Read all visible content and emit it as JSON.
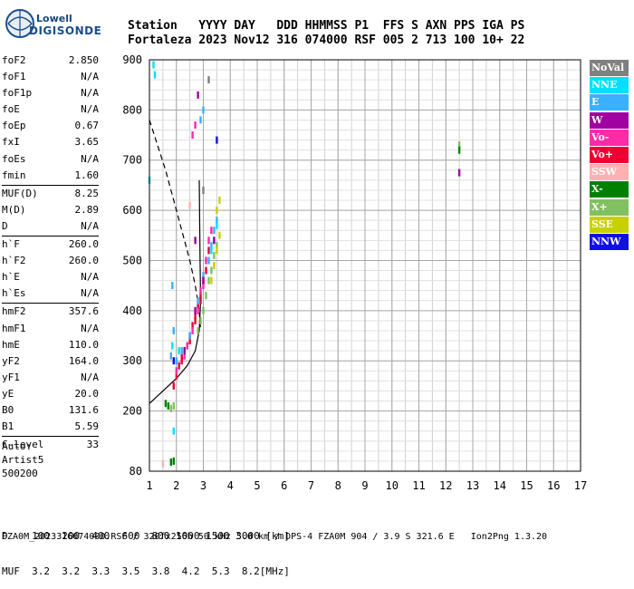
{
  "logo": {
    "line1": "Lowell",
    "line2": "DIGISONDE"
  },
  "header": {
    "labels": [
      "Station",
      "YYYY",
      "DAY",
      "DDD",
      "HHMMSS",
      "P1",
      "FFS",
      "S",
      "AXN",
      "PPS",
      "IGA",
      "PS"
    ],
    "values": [
      "Fortaleza",
      "2023",
      "Nov12",
      "316",
      "074000",
      "RSF",
      "005",
      "2",
      "713",
      "100",
      "10+",
      "22"
    ]
  },
  "params": [
    [
      [
        "foF2",
        "2.850"
      ],
      [
        "foF1",
        "N/A"
      ],
      [
        "foF1p",
        "N/A"
      ],
      [
        "foE",
        "N/A"
      ],
      [
        "foEp",
        "0.67"
      ],
      [
        "fxI",
        "3.65"
      ],
      [
        "foEs",
        "N/A"
      ],
      [
        "fmin",
        "1.60"
      ]
    ],
    [
      [
        "MUF(D)",
        "8.25"
      ],
      [
        "M(D)",
        "2.89"
      ],
      [
        "D",
        "N/A"
      ]
    ],
    [
      [
        "h`F",
        "260.0"
      ],
      [
        "h`F2",
        "260.0"
      ],
      [
        "h`E",
        "N/A"
      ],
      [
        "h`Es",
        "N/A"
      ]
    ],
    [
      [
        "hmF2",
        "357.6"
      ],
      [
        "hmF1",
        "N/A"
      ],
      [
        "hmE",
        "110.0"
      ],
      [
        "yF2",
        "164.0"
      ],
      [
        "yF1",
        "N/A"
      ],
      [
        "yE",
        "20.0"
      ],
      [
        "B0",
        "131.6"
      ],
      [
        "B1",
        "5.59"
      ]
    ],
    [
      [
        "C-level",
        "33"
      ]
    ]
  ],
  "auto": [
    "Auto:",
    "Artist5",
    "500200"
  ],
  "legend": [
    {
      "label": "NoVal",
      "color": "#808080"
    },
    {
      "label": "NNE",
      "color": "#00e0ff"
    },
    {
      "label": "E",
      "color": "#3ab0ff"
    },
    {
      "label": "W",
      "color": "#a000a0"
    },
    {
      "label": "Vo-",
      "color": "#ff2aa8"
    },
    {
      "label": "Vo+",
      "color": "#ee0033"
    },
    {
      "label": "SSW",
      "color": "#ffb0b0"
    },
    {
      "label": "X-",
      "color": "#008000"
    },
    {
      "label": "X+",
      "color": "#80c060"
    },
    {
      "label": "SSE",
      "color": "#c8d000"
    },
    {
      "label": "NNW",
      "color": "#1010e0"
    }
  ],
  "freq_table": {
    "d_label": "D",
    "d_values": [
      "100",
      "200",
      "400",
      "600",
      "800",
      "1000",
      "1500",
      "3000",
      "[km]"
    ],
    "muf_label": "MUF",
    "muf_values": [
      "3.2",
      "3.2",
      "3.3",
      "3.5",
      "3.8",
      "4.2",
      "5.3",
      "8.2",
      "[MHz]"
    ]
  },
  "footer": "FZA0M_2023316074000.RSF / 320fx256h 50 kHz 5.0 km / DPS-4 FZA0M 904 / 3.9 S 321.6 E   Ion2Png 1.3.20",
  "chart_data": {
    "type": "scatter",
    "xlim": [
      1,
      17
    ],
    "ylim": [
      80,
      900
    ],
    "x_ticks": [
      1,
      2,
      3,
      4,
      5,
      6,
      7,
      8,
      9,
      10,
      11,
      12,
      13,
      14,
      15,
      16,
      17
    ],
    "y_ticks": [
      80,
      200,
      300,
      400,
      500,
      600,
      700,
      800,
      900
    ],
    "grid": true,
    "clusters": [
      {
        "color": "#ee0033",
        "points": [
          [
            1.9,
            250
          ],
          [
            2.0,
            270
          ],
          [
            2.1,
            290
          ],
          [
            2.2,
            300
          ],
          [
            2.3,
            320
          ],
          [
            2.4,
            330
          ],
          [
            2.5,
            350
          ],
          [
            2.6,
            370
          ],
          [
            2.7,
            390
          ],
          [
            2.8,
            410
          ],
          [
            2.9,
            430
          ],
          [
            3.0,
            460
          ],
          [
            3.1,
            480
          ],
          [
            2.2,
            310
          ],
          [
            2.5,
            340
          ],
          [
            2.7,
            380
          ],
          [
            2.9,
            420
          ],
          [
            3.2,
            520
          ]
        ]
      },
      {
        "color": "#ff2aa8",
        "points": [
          [
            2.0,
            280
          ],
          [
            2.3,
            310
          ],
          [
            2.6,
            360
          ],
          [
            2.8,
            400
          ],
          [
            3.0,
            450
          ],
          [
            3.1,
            500
          ],
          [
            3.2,
            540
          ],
          [
            3.3,
            560
          ],
          [
            2.4,
            330
          ],
          [
            2.9,
            440
          ],
          [
            2.6,
            750
          ],
          [
            2.7,
            770
          ]
        ]
      },
      {
        "color": "#3ab0ff",
        "points": [
          [
            1.8,
            310
          ],
          [
            2.0,
            300
          ],
          [
            2.2,
            320
          ],
          [
            2.5,
            350
          ],
          [
            2.8,
            420
          ],
          [
            3.0,
            470
          ],
          [
            3.2,
            500
          ],
          [
            3.3,
            530
          ],
          [
            3.4,
            560
          ],
          [
            3.5,
            580
          ],
          [
            2.9,
            780
          ],
          [
            3.0,
            800
          ],
          [
            1.9,
            360
          ],
          [
            1.85,
            450
          ]
        ]
      },
      {
        "color": "#00e0ff",
        "points": [
          [
            1.85,
            330
          ],
          [
            2.1,
            320
          ],
          [
            3.3,
            520
          ],
          [
            3.4,
            540
          ],
          [
            3.5,
            570
          ],
          [
            1.15,
            890
          ],
          [
            1.2,
            870
          ],
          [
            1.9,
            160
          ],
          [
            1.0,
            660
          ]
        ]
      },
      {
        "color": "#a000a0",
        "points": [
          [
            2.3,
            320
          ],
          [
            2.7,
            400
          ],
          [
            3.0,
            460
          ],
          [
            3.4,
            540
          ],
          [
            2.7,
            540
          ],
          [
            12.5,
            675
          ],
          [
            2.8,
            830
          ]
        ]
      },
      {
        "color": "#80c060",
        "points": [
          [
            2.8,
            360
          ],
          [
            2.9,
            380
          ],
          [
            3.0,
            400
          ],
          [
            3.1,
            430
          ],
          [
            3.2,
            460
          ],
          [
            3.3,
            480
          ],
          [
            3.4,
            510
          ],
          [
            3.5,
            530
          ],
          [
            1.8,
            205
          ],
          [
            1.9,
            210
          ],
          [
            12.5,
            730
          ]
        ]
      },
      {
        "color": "#c8d000",
        "points": [
          [
            3.3,
            460
          ],
          [
            3.4,
            490
          ],
          [
            3.5,
            520
          ],
          [
            3.6,
            550
          ],
          [
            3.5,
            600
          ],
          [
            3.6,
            620
          ]
        ]
      },
      {
        "color": "#008000",
        "points": [
          [
            1.6,
            215
          ],
          [
            1.7,
            210
          ],
          [
            1.9,
            100
          ],
          [
            1.8,
            98
          ],
          [
            12.5,
            720
          ]
        ]
      },
      {
        "color": "#1010e0",
        "points": [
          [
            3.5,
            740
          ],
          [
            1.9,
            300
          ]
        ]
      },
      {
        "color": "#808080",
        "points": [
          [
            3.2,
            860
          ],
          [
            3.0,
            640
          ]
        ]
      },
      {
        "color": "#ffb0b0",
        "points": [
          [
            2.5,
            610
          ],
          [
            1.5,
            95
          ]
        ]
      }
    ],
    "traces": [
      {
        "name": "model-dashed",
        "style": "dashed",
        "points": [
          [
            1.0,
            780
          ],
          [
            1.3,
            730
          ],
          [
            1.6,
            680
          ],
          [
            1.9,
            620
          ],
          [
            2.2,
            560
          ],
          [
            2.5,
            500
          ],
          [
            2.7,
            450
          ],
          [
            2.85,
            400
          ],
          [
            2.9,
            360
          ]
        ]
      },
      {
        "name": "model-solid",
        "style": "solid",
        "points": [
          [
            1.0,
            215
          ],
          [
            1.5,
            240
          ],
          [
            2.0,
            265
          ],
          [
            2.4,
            290
          ],
          [
            2.7,
            320
          ],
          [
            2.85,
            360
          ],
          [
            2.9,
            420
          ],
          [
            2.88,
            500
          ],
          [
            2.85,
            660
          ]
        ]
      }
    ]
  }
}
